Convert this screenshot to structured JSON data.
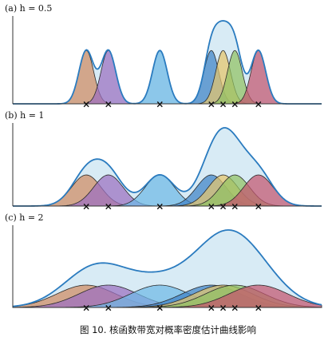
{
  "chart_data": {
    "type": "area",
    "title": "",
    "x_range": [
      -4,
      17
    ],
    "samples": [
      1.0,
      2.5,
      6.0,
      9.5,
      10.3,
      11.1,
      12.7
    ],
    "kernel_colors": [
      "#d08a63",
      "#9b6fc0",
      "#6fb9e6",
      "#3f82c6",
      "#e6c56b",
      "#92c063",
      "#c3556f"
    ],
    "kde_fill": "#d8ebf5",
    "kde_stroke": "#2a7bbf",
    "axis_color": "#333333",
    "marker": "×",
    "panels": [
      {
        "label": "(a) h = 0.5",
        "h": 0.5
      },
      {
        "label": "(b) h = 1",
        "h": 1
      },
      {
        "label": "(c) h = 2",
        "h": 2
      }
    ]
  },
  "caption": "图 10. 核函数带宽对概率密度估计曲线影响"
}
